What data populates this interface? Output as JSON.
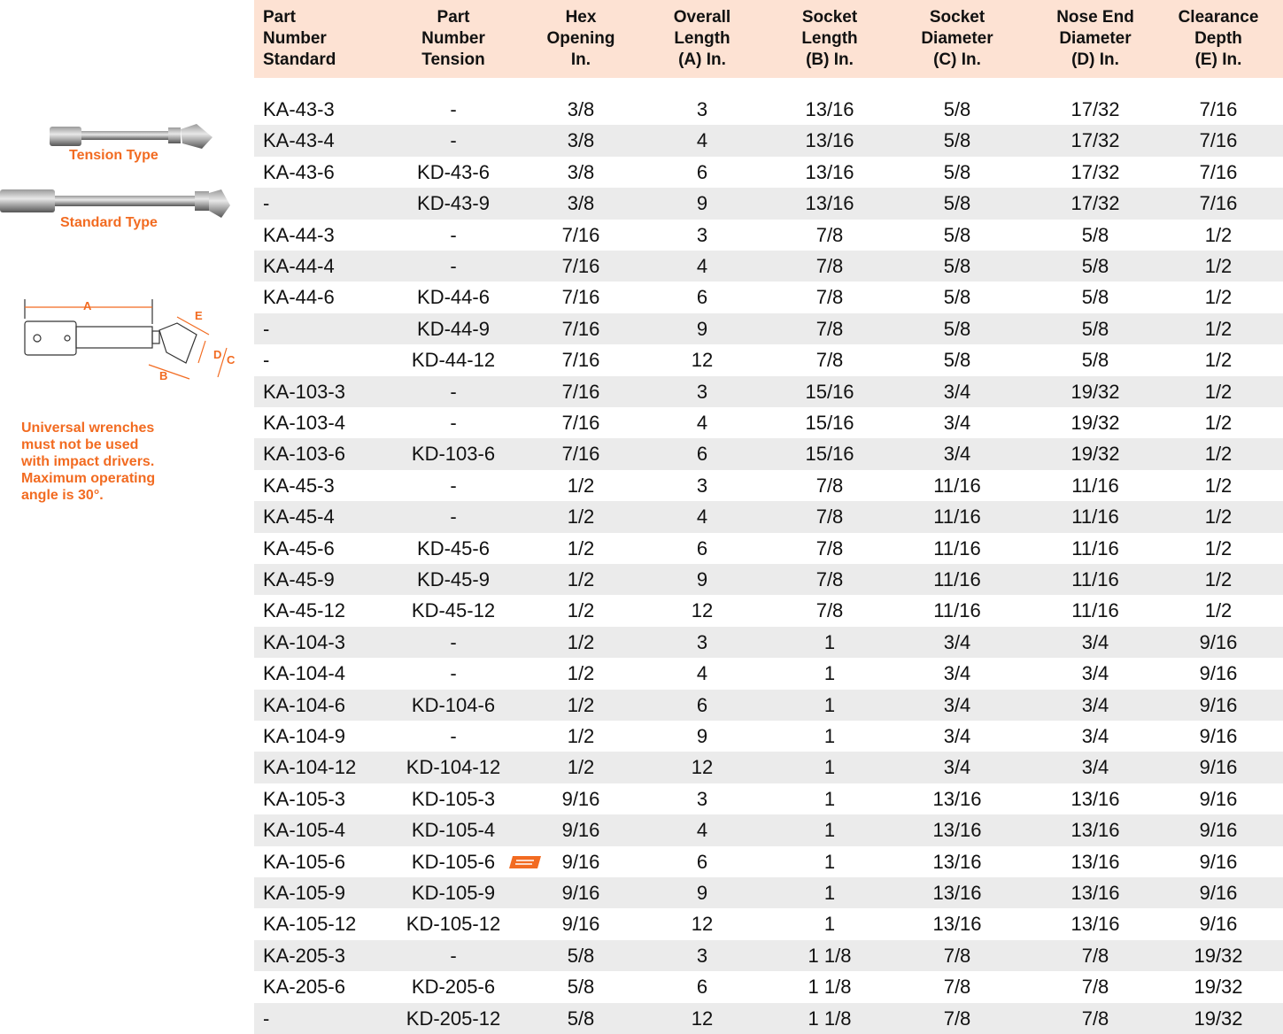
{
  "sidebar": {
    "tension_label": "Tension Type",
    "standard_label": "Standard Type",
    "diagram_labels": [
      "A",
      "B",
      "C",
      "D",
      "E"
    ],
    "warning": [
      "Universal wrenches",
      "must not be used",
      "with impact drivers.",
      "Maximum operating",
      "angle is 30°."
    ]
  },
  "table": {
    "headers": [
      [
        "Part",
        "Number",
        "Standard"
      ],
      [
        "Part",
        "Number",
        "Tension"
      ],
      [
        "Hex",
        "Opening",
        "In."
      ],
      [
        "Overall",
        "Length",
        "(A) In."
      ],
      [
        "Socket",
        "Length",
        "(B) In."
      ],
      [
        "Socket",
        "Diameter",
        "(C) In."
      ],
      [
        "Nose End",
        "Diameter",
        "(D) In."
      ],
      [
        "Clearance",
        "Depth",
        "(E) In."
      ]
    ],
    "rows": [
      [
        "KA-43-3",
        "-",
        "3/8",
        "3",
        "13/16",
        "5/8",
        "17/32",
        "7/16"
      ],
      [
        "KA-43-4",
        "-",
        "3/8",
        "4",
        "13/16",
        "5/8",
        "17/32",
        "7/16"
      ],
      [
        "KA-43-6",
        "KD-43-6",
        "3/8",
        "6",
        "13/16",
        "5/8",
        "17/32",
        "7/16"
      ],
      [
        "-",
        "KD-43-9",
        "3/8",
        "9",
        "13/16",
        "5/8",
        "17/32",
        "7/16"
      ],
      [
        "KA-44-3",
        "-",
        "7/16",
        "3",
        "7/8",
        "5/8",
        "5/8",
        "1/2"
      ],
      [
        "KA-44-4",
        "-",
        "7/16",
        "4",
        "7/8",
        "5/8",
        "5/8",
        "1/2"
      ],
      [
        "KA-44-6",
        "KD-44-6",
        "7/16",
        "6",
        "7/8",
        "5/8",
        "5/8",
        "1/2"
      ],
      [
        "-",
        "KD-44-9",
        "7/16",
        "9",
        "7/8",
        "5/8",
        "5/8",
        "1/2"
      ],
      [
        "-",
        "KD-44-12",
        "7/16",
        "12",
        "7/8",
        "5/8",
        "5/8",
        "1/2"
      ],
      [
        "KA-103-3",
        "-",
        "7/16",
        "3",
        "15/16",
        "3/4",
        "19/32",
        "1/2"
      ],
      [
        "KA-103-4",
        "-",
        "7/16",
        "4",
        "15/16",
        "3/4",
        "19/32",
        "1/2"
      ],
      [
        "KA-103-6",
        "KD-103-6",
        "7/16",
        "6",
        "15/16",
        "3/4",
        "19/32",
        "1/2"
      ],
      [
        "KA-45-3",
        "-",
        "1/2",
        "3",
        "7/8",
        "11/16",
        "11/16",
        "1/2"
      ],
      [
        "KA-45-4",
        "-",
        "1/2",
        "4",
        "7/8",
        "11/16",
        "11/16",
        "1/2"
      ],
      [
        "KA-45-6",
        "KD-45-6",
        "1/2",
        "6",
        "7/8",
        "11/16",
        "11/16",
        "1/2"
      ],
      [
        "KA-45-9",
        "KD-45-9",
        "1/2",
        "9",
        "7/8",
        "11/16",
        "11/16",
        "1/2"
      ],
      [
        "KA-45-12",
        "KD-45-12",
        "1/2",
        "12",
        "7/8",
        "11/16",
        "11/16",
        "1/2"
      ],
      [
        "KA-104-3",
        "-",
        "1/2",
        "3",
        "1",
        "3/4",
        "3/4",
        "9/16"
      ],
      [
        "KA-104-4",
        "-",
        "1/2",
        "4",
        "1",
        "3/4",
        "3/4",
        "9/16"
      ],
      [
        "KA-104-6",
        "KD-104-6",
        "1/2",
        "6",
        "1",
        "3/4",
        "3/4",
        "9/16"
      ],
      [
        "KA-104-9",
        "-",
        "1/2",
        "9",
        "1",
        "3/4",
        "3/4",
        "9/16"
      ],
      [
        "KA-104-12",
        "KD-104-12",
        "1/2",
        "12",
        "1",
        "3/4",
        "3/4",
        "9/16"
      ],
      [
        "KA-105-3",
        "KD-105-3",
        "9/16",
        "3",
        "1",
        "13/16",
        "13/16",
        "9/16"
      ],
      [
        "KA-105-4",
        "KD-105-4",
        "9/16",
        "4",
        "1",
        "13/16",
        "13/16",
        "9/16"
      ],
      [
        "KA-105-6",
        "KD-105-6",
        "9/16",
        "6",
        "1",
        "13/16",
        "13/16",
        "9/16"
      ],
      [
        "KA-105-9",
        "KD-105-9",
        "9/16",
        "9",
        "1",
        "13/16",
        "13/16",
        "9/16"
      ],
      [
        "KA-105-12",
        "KD-105-12",
        "9/16",
        "12",
        "1",
        "13/16",
        "13/16",
        "9/16"
      ],
      [
        "KA-205-3",
        "-",
        "5/8",
        "3",
        "1 1/8",
        "7/8",
        "7/8",
        "19/32"
      ],
      [
        "KA-205-6",
        "KD-205-6",
        "5/8",
        "6",
        "1 1/8",
        "7/8",
        "7/8",
        "19/32"
      ],
      [
        "-",
        "KD-205-12",
        "5/8",
        "12",
        "1 1/8",
        "7/8",
        "7/8",
        "19/32"
      ]
    ]
  }
}
